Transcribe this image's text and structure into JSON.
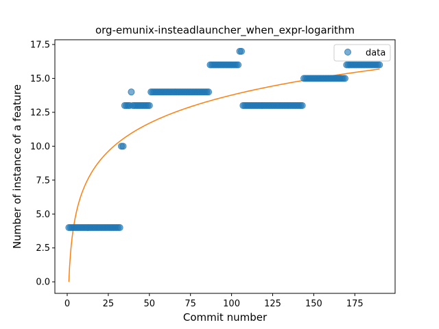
{
  "chart_data": {
    "type": "scatter",
    "title": "org-emunix-insteadlauncher_when_expr-logarithm",
    "xlabel": "Commit number",
    "ylabel": "Number of instance of a feature",
    "xlim": [
      -7.5,
      199.5
    ],
    "ylim": [
      -0.85,
      17.85
    ],
    "xticks": [
      0,
      25,
      50,
      75,
      100,
      125,
      150,
      175
    ],
    "yticks": [
      0.0,
      2.5,
      5.0,
      7.5,
      10.0,
      12.5,
      15.0,
      17.5
    ],
    "xtick_labels": [
      "0",
      "25",
      "50",
      "75",
      "100",
      "125",
      "150",
      "175"
    ],
    "ytick_labels": [
      "0.0",
      "2.5",
      "5.0",
      "7.5",
      "10.0",
      "12.5",
      "15.0",
      "17.5"
    ],
    "legend": {
      "entries": [
        "data"
      ],
      "placement": "top-right"
    },
    "grid": false,
    "series": [
      {
        "name": "data",
        "kind": "scatter",
        "color": "#1f77b4",
        "segments": [
          {
            "x_from": 1,
            "x_to": 32,
            "y": 4
          },
          {
            "x_from": 33,
            "x_to": 34,
            "y": 10
          },
          {
            "x_from": 35,
            "x_to": 38,
            "y": 13
          },
          {
            "x_from": 39,
            "x_to": 39,
            "y": 14
          },
          {
            "x_from": 40,
            "x_to": 50,
            "y": 13
          },
          {
            "x_from": 51,
            "x_to": 86,
            "y": 14
          },
          {
            "x_from": 87,
            "x_to": 104,
            "y": 16
          },
          {
            "x_from": 105,
            "x_to": 106,
            "y": 17
          },
          {
            "x_from": 107,
            "x_to": 143,
            "y": 13
          },
          {
            "x_from": 144,
            "x_to": 169,
            "y": 15
          },
          {
            "x_from": 170,
            "x_to": 190,
            "y": 16
          }
        ]
      },
      {
        "name": "",
        "kind": "line",
        "color": "#ff7f0e",
        "model": {
          "form": "a + b*ln(x)",
          "a": 0.0,
          "b": 2.99,
          "x_from": 1,
          "x_to": 190
        }
      }
    ]
  }
}
